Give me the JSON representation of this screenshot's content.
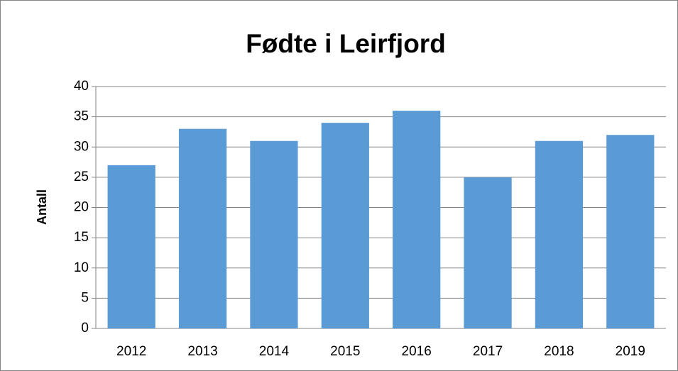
{
  "chart_data": {
    "type": "bar",
    "title": "Fødte i Leirfjord",
    "y_label": "Antall",
    "categories": [
      "2012",
      "2013",
      "2014",
      "2015",
      "2016",
      "2017",
      "2018",
      "2019"
    ],
    "values": [
      27,
      33,
      31,
      34,
      36,
      25,
      31,
      32
    ],
    "color": "#5b9bd5",
    "ylim": [
      0,
      40
    ],
    "yticks": [
      0,
      5,
      10,
      15,
      20,
      25,
      30,
      35,
      40
    ],
    "grid": true
  }
}
